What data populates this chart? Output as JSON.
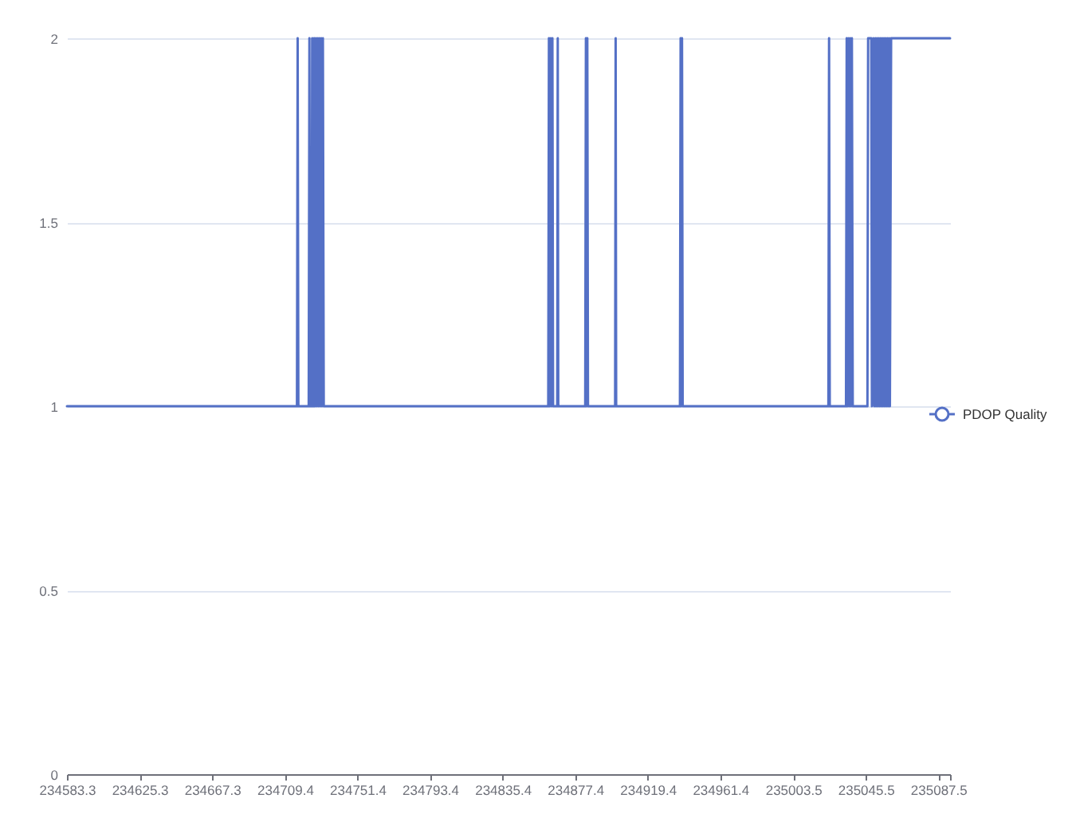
{
  "chart_data": {
    "type": "line",
    "x": [
      234583.3,
      234716.4,
      234716.8,
      234717.2,
      234723.2,
      234723.6,
      234724.0,
      234724.9,
      234725.2,
      234725.5,
      234726.0,
      234726.4,
      234726.9,
      234727.4,
      234727.9,
      234728.4,
      234728.9,
      234729.4,
      234729.9,
      234730.4,
      234730.9,
      234731.4,
      234731.9,
      234861.8,
      234862.2,
      234862.7,
      234863.2,
      234863.7,
      234864.2,
      234864.6,
      234867.0,
      234867.3,
      234867.6,
      234883.2,
      234883.6,
      234884.0,
      234884.4,
      234884.8,
      234900.5,
      234900.8,
      234901.1,
      234938.0,
      234938.4,
      234938.8,
      234939.2,
      234939.6,
      235023.9,
      235024.3,
      235024.7,
      235034.1,
      235034.5,
      235035.0,
      235035.5,
      235036.0,
      235036.5,
      235037.0,
      235037.5,
      235038.0,
      235046.5,
      235046.9,
      235048.7,
      235049.1,
      235050.0,
      235050.5,
      235051.0,
      235051.5,
      235052.0,
      235052.5,
      235053.0,
      235053.5,
      235054.0,
      235054.5,
      235055.0,
      235055.5,
      235056.0,
      235056.5,
      235057.0,
      235057.5,
      235058.0,
      235058.5,
      235059.0,
      235059.5,
      235060.2,
      235094.3
    ],
    "series": [
      {
        "name": "PDOP Quality",
        "color": "#5470c6",
        "values": [
          1,
          1,
          2,
          1,
          1,
          2,
          1,
          1,
          2,
          1,
          1,
          2,
          1,
          2,
          1,
          2,
          1,
          2,
          1,
          2,
          1,
          2,
          1,
          1,
          2,
          1,
          2,
          1,
          2,
          1,
          1,
          2,
          1,
          1,
          2,
          1,
          2,
          1,
          1,
          2,
          1,
          1,
          2,
          1,
          2,
          1,
          1,
          2,
          1,
          1,
          2,
          1,
          2,
          1,
          2,
          1,
          2,
          1,
          1,
          2,
          2,
          1,
          2,
          1,
          2,
          1,
          2,
          1,
          2,
          1,
          2,
          1,
          2,
          1,
          2,
          1,
          2,
          1,
          2,
          1,
          2,
          1,
          2,
          2
        ]
      }
    ],
    "xlim": [
      234583.3,
      235094.3
    ],
    "xticks": [
      234583.3,
      234625.3,
      234667.3,
      234709.4,
      234751.4,
      234793.4,
      234835.4,
      234877.4,
      234919.4,
      234961.4,
      235003.5,
      235045.5,
      235087.5,
      {
        "value": 235094.3,
        "label": null
      }
    ],
    "ylim": [
      0,
      2
    ],
    "yticks": [
      0,
      0.5,
      1,
      1.5,
      2
    ],
    "grid": "y",
    "legend": "right"
  }
}
